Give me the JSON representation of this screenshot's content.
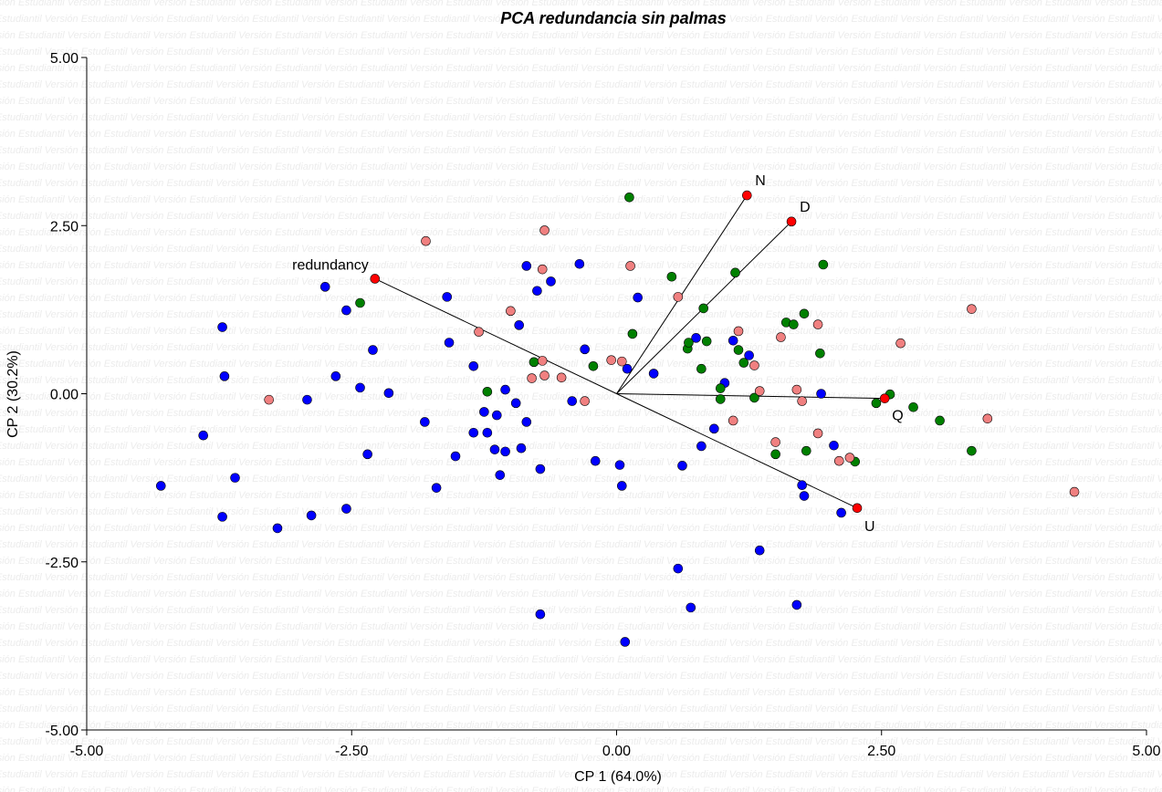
{
  "watermark_text": "Versión Estudiantil",
  "chart_data": {
    "type": "scatter",
    "title": "PCA redundancia sin palmas",
    "xlabel": "CP 1 (64.0%)",
    "ylabel": "CP 2 (30.2%)",
    "xlim": [
      -5.0,
      5.0
    ],
    "ylim": [
      -5.0,
      5.0
    ],
    "xticks": [
      "-5.00",
      "-2.50",
      "0.00",
      "2.50",
      "5.00"
    ],
    "yticks": [
      "5.00",
      "2.50",
      "0.00",
      "-2.50",
      "-5.00"
    ],
    "xtick_values": [
      -5,
      -2.5,
      0,
      2.5,
      5
    ],
    "ytick_values": [
      5,
      2.5,
      0,
      -2.5,
      -5
    ],
    "grid": false,
    "colors": {
      "blue": "#0000ff",
      "green": "#008000",
      "pink": "#f08080",
      "vector": "#ff0000"
    },
    "vectors": [
      {
        "label": "N",
        "x": 1.23,
        "y": 2.95
      },
      {
        "label": "D",
        "x": 1.65,
        "y": 2.56
      },
      {
        "label": "redundancy",
        "x": -2.28,
        "y": 1.71
      },
      {
        "label": "Q",
        "x": 2.53,
        "y": -0.07
      },
      {
        "label": "U",
        "x": 2.27,
        "y": -1.7
      }
    ],
    "series": [
      {
        "color": "blue",
        "points": [
          [
            -4.3,
            -1.37
          ],
          [
            -3.9,
            -0.62
          ],
          [
            -3.72,
            0.99
          ],
          [
            -3.7,
            0.26
          ],
          [
            -3.72,
            -1.83
          ],
          [
            -3.6,
            -1.25
          ],
          [
            -3.2,
            -2.0
          ],
          [
            -2.92,
            -0.09
          ],
          [
            -2.88,
            -1.81
          ],
          [
            -2.75,
            1.59
          ],
          [
            -2.65,
            0.26
          ],
          [
            -2.55,
            1.24
          ],
          [
            -2.55,
            -1.71
          ],
          [
            -2.42,
            0.09
          ],
          [
            -2.35,
            -0.9
          ],
          [
            -2.3,
            0.65
          ],
          [
            -2.15,
            0.01
          ],
          [
            -1.81,
            -0.42
          ],
          [
            -1.6,
            1.44
          ],
          [
            -1.58,
            0.76
          ],
          [
            -1.7,
            -1.4
          ],
          [
            -1.52,
            -0.93
          ],
          [
            -1.35,
            0.41
          ],
          [
            -1.35,
            -0.58
          ],
          [
            -1.25,
            -0.27
          ],
          [
            -1.22,
            -0.58
          ],
          [
            -1.15,
            -0.83
          ],
          [
            -1.13,
            -0.32
          ],
          [
            -1.1,
            -1.21
          ],
          [
            -1.05,
            0.06
          ],
          [
            -1.05,
            -0.86
          ],
          [
            -0.95,
            -0.14
          ],
          [
            -0.9,
            -0.81
          ],
          [
            -0.85,
            -0.42
          ],
          [
            -0.92,
            1.02
          ],
          [
            -0.85,
            1.9
          ],
          [
            -0.75,
            1.53
          ],
          [
            -0.72,
            -1.12
          ],
          [
            -0.62,
            1.67
          ],
          [
            -0.35,
            1.93
          ],
          [
            -0.3,
            0.66
          ],
          [
            -0.42,
            -0.11
          ],
          [
            -0.2,
            -1.0
          ],
          [
            0.03,
            -1.06
          ],
          [
            0.05,
            -1.37
          ],
          [
            0.1,
            0.37
          ],
          [
            0.2,
            1.43
          ],
          [
            0.35,
            0.3
          ],
          [
            0.58,
            -2.6
          ],
          [
            0.62,
            -1.07
          ],
          [
            0.7,
            -3.18
          ],
          [
            0.75,
            0.83
          ],
          [
            0.8,
            -0.78
          ],
          [
            0.92,
            -0.52
          ],
          [
            1.02,
            0.16
          ],
          [
            1.1,
            0.79
          ],
          [
            1.25,
            0.57
          ],
          [
            1.35,
            -2.33
          ],
          [
            1.7,
            -3.14
          ],
          [
            1.75,
            -1.36
          ],
          [
            1.77,
            -1.52
          ],
          [
            1.93,
            0.0
          ],
          [
            2.05,
            -0.77
          ],
          [
            2.12,
            -1.77
          ],
          [
            0.08,
            -3.69
          ],
          [
            -0.72,
            -3.28
          ]
        ]
      },
      {
        "color": "green",
        "points": [
          [
            -2.42,
            1.35
          ],
          [
            -1.22,
            0.03
          ],
          [
            -0.78,
            0.47
          ],
          [
            -0.22,
            0.41
          ],
          [
            0.12,
            2.92
          ],
          [
            0.15,
            0.89
          ],
          [
            0.52,
            1.74
          ],
          [
            0.67,
            0.67
          ],
          [
            0.68,
            0.76
          ],
          [
            0.8,
            0.37
          ],
          [
            0.82,
            1.27
          ],
          [
            0.85,
            0.78
          ],
          [
            0.98,
            0.08
          ],
          [
            0.98,
            -0.08
          ],
          [
            1.12,
            1.8
          ],
          [
            1.15,
            0.65
          ],
          [
            1.2,
            0.46
          ],
          [
            1.3,
            -0.06
          ],
          [
            1.5,
            -0.9
          ],
          [
            1.6,
            1.06
          ],
          [
            1.67,
            1.03
          ],
          [
            1.77,
            1.19
          ],
          [
            1.79,
            -0.85
          ],
          [
            1.92,
            0.6
          ],
          [
            1.95,
            1.92
          ],
          [
            2.25,
            -1.01
          ],
          [
            2.45,
            -0.14
          ],
          [
            2.58,
            -0.01
          ],
          [
            2.8,
            -0.2
          ],
          [
            3.05,
            -0.4
          ],
          [
            3.35,
            -0.85
          ]
        ]
      },
      {
        "color": "pink",
        "points": [
          [
            -3.28,
            -0.09
          ],
          [
            -1.8,
            2.27
          ],
          [
            -1.3,
            0.92
          ],
          [
            -1.0,
            1.23
          ],
          [
            -0.8,
            0.23
          ],
          [
            -0.7,
            0.49
          ],
          [
            -0.68,
            2.43
          ],
          [
            -0.7,
            1.85
          ],
          [
            -0.52,
            0.24
          ],
          [
            -0.3,
            -0.11
          ],
          [
            -0.05,
            0.5
          ],
          [
            0.13,
            1.9
          ],
          [
            0.58,
            1.44
          ],
          [
            1.1,
            -0.4
          ],
          [
            1.15,
            0.93
          ],
          [
            1.3,
            0.42
          ],
          [
            1.35,
            0.04
          ],
          [
            1.5,
            -0.72
          ],
          [
            1.55,
            0.84
          ],
          [
            1.7,
            0.06
          ],
          [
            1.75,
            -0.11
          ],
          [
            1.9,
            1.03
          ],
          [
            1.9,
            -0.59
          ],
          [
            2.1,
            -1.0
          ],
          [
            2.2,
            -0.95
          ],
          [
            2.68,
            0.75
          ],
          [
            3.35,
            1.26
          ],
          [
            3.5,
            -0.37
          ],
          [
            4.32,
            -1.46
          ],
          [
            0.05,
            0.48
          ],
          [
            -0.68,
            0.27
          ]
        ]
      }
    ]
  }
}
